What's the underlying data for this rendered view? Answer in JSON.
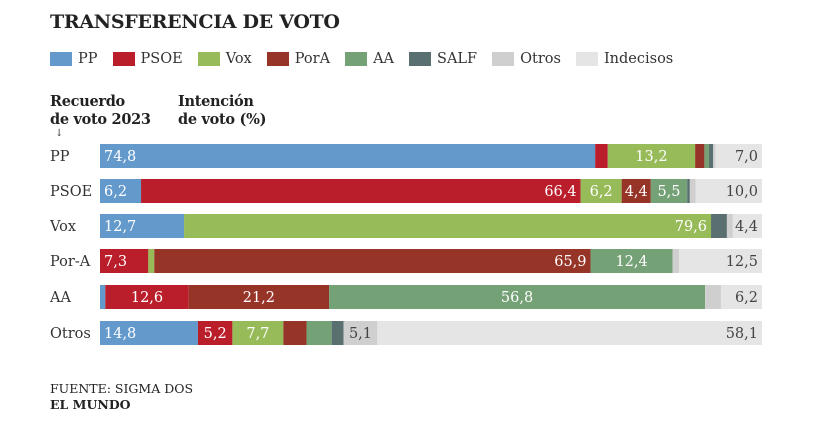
{
  "chart_data": {
    "type": "bar",
    "stacked": true,
    "orientation": "horizontal",
    "title": "TRANSFERENCIA DE VOTO",
    "row_header": "Recuerdo de voto 2023",
    "value_header": "Intención de voto (%)",
    "categories": [
      "PP",
      "PSOE",
      "Vox",
      "Por-A",
      "AA",
      "Otros"
    ],
    "xlim": [
      0,
      100
    ],
    "legend_position": "top",
    "series": [
      {
        "name": "PP",
        "color": "#6499cc",
        "values": [
          74.8,
          6.2,
          12.7,
          0,
          0.8,
          14.8
        ],
        "shown": [
          true,
          true,
          true,
          false,
          false,
          true
        ]
      },
      {
        "name": "PSOE",
        "color": "#bb1e2b",
        "values": [
          1.9,
          66.4,
          0,
          7.3,
          12.6,
          5.2
        ],
        "shown": [
          false,
          true,
          false,
          true,
          true,
          true
        ]
      },
      {
        "name": "Vox",
        "color": "#98bb5a",
        "values": [
          13.2,
          6.2,
          79.6,
          0.9,
          0,
          7.7
        ],
        "shown": [
          true,
          true,
          true,
          false,
          false,
          true
        ]
      },
      {
        "name": "PorA",
        "color": "#963428",
        "values": [
          1.4,
          4.4,
          0,
          65.9,
          21.2,
          3.5
        ],
        "shown": [
          false,
          true,
          false,
          true,
          true,
          false
        ]
      },
      {
        "name": "AA",
        "color": "#74a176",
        "values": [
          0.7,
          5.5,
          0,
          12.4,
          56.8,
          3.8
        ],
        "shown": [
          false,
          true,
          false,
          true,
          true,
          false
        ]
      },
      {
        "name": "SALF",
        "color": "#5a6f70",
        "values": [
          0.6,
          0.4,
          2.4,
          0,
          0,
          1.8
        ],
        "shown": [
          false,
          false,
          false,
          false,
          false,
          false
        ]
      },
      {
        "name": "Otros",
        "color": "#cfcfcf",
        "values": [
          0.4,
          0.9,
          0.9,
          1.0,
          2.4,
          5.1
        ],
        "shown": [
          false,
          false,
          false,
          false,
          false,
          true
        ]
      },
      {
        "name": "Indecisos",
        "color": "#e5e5e6",
        "values": [
          7.0,
          10.0,
          4.4,
          12.5,
          6.2,
          58.1
        ],
        "shown": [
          true,
          true,
          true,
          true,
          true,
          true
        ]
      }
    ]
  },
  "footer": {
    "source": "FUENTE: SIGMA DOS",
    "brand": "EL MUNDO"
  },
  "header": {
    "row_header_1": "Recuerdo",
    "row_header_2": "de voto 2023",
    "value_header_1": "Intención",
    "value_header_2": "de voto (%)",
    "arrow": "↓"
  }
}
